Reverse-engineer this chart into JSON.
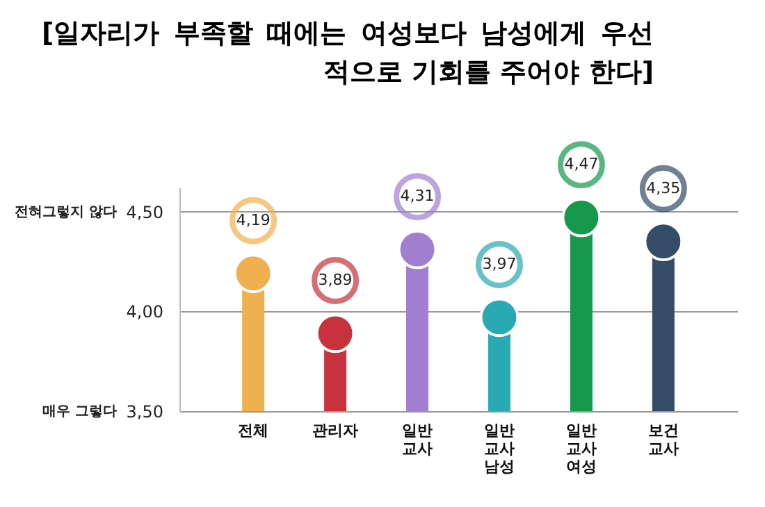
{
  "chart_data": {
    "type": "lollipop",
    "title": "[일자리가 부족할 때에는 여성보다 남성에게 우선적으로 기회를 주어야 한다]",
    "categories": [
      "전체",
      "관리자",
      "일반 교사",
      "일반 교사 남성",
      "일반 교사 여성",
      "보건 교사"
    ],
    "values": [
      4.19,
      3.89,
      4.31,
      3.97,
      4.47,
      4.35
    ],
    "colors": [
      "#f0b050",
      "#c8323c",
      "#a07ed0",
      "#2aa8b4",
      "#16994c",
      "#344c68"
    ],
    "value_labels": [
      "4,19",
      "3,89",
      "4,31",
      "3,97",
      "4,47",
      "4,35"
    ],
    "ylim": [
      3.5,
      4.62
    ],
    "yticks": [
      {
        "value": 3.5,
        "label": "3,50"
      },
      {
        "value": 4.0,
        "label": "4,00"
      },
      {
        "value": 4.5,
        "label": "4,50"
      }
    ],
    "grid": "y",
    "marker": "circle",
    "annotations": [
      "전혀그렇지 않다",
      "매우 그렇다"
    ]
  }
}
